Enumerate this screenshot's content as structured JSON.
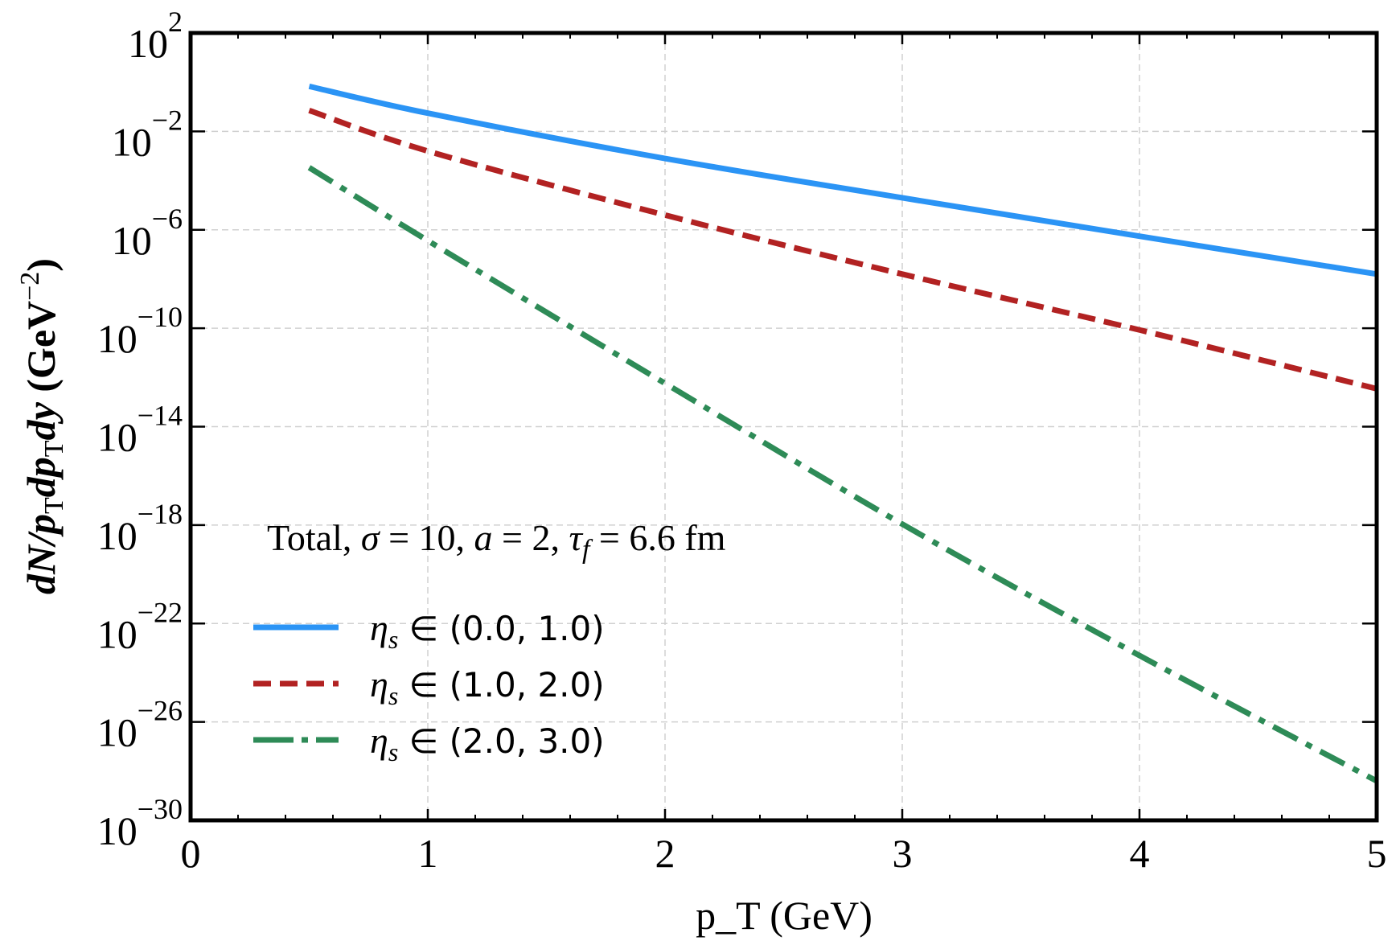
{
  "chart_data": {
    "type": "line",
    "title": "",
    "xlabel": "p_T (GeV)",
    "xlabel_parts": {
      "var": "p",
      "sub": "T",
      "unit": " (GeV)"
    },
    "ylabel": "dN/p_T dp_T dy (GeV^-2)",
    "ylabel_parts": {
      "a": "dN/p",
      "sub1": "T",
      "b": "dp",
      "sub2": "T",
      "c": "dy",
      "unit": " (GeV",
      "exp": "−2",
      "close": ")"
    },
    "xlim": [
      0,
      5
    ],
    "ylim_log10": [
      -30,
      2
    ],
    "yscale": "log",
    "grid": true,
    "legend_placement": "lower-left",
    "annotation": {
      "a": "Total, ",
      "sigma": "σ",
      "b": " = 10, ",
      "avar": "a",
      "c": " = 2, ",
      "tau": "τ",
      "tausub": "f",
      "d": " = 6.6 fm"
    },
    "xticks": [
      "0",
      "1",
      "2",
      "3",
      "4",
      "5"
    ],
    "yticks": [
      {
        "base": "10",
        "exp": "2"
      },
      {
        "base": "10",
        "exp": "−2"
      },
      {
        "base": "10",
        "exp": "−6"
      },
      {
        "base": "10",
        "exp": "−10"
      },
      {
        "base": "10",
        "exp": "−14"
      },
      {
        "base": "10",
        "exp": "−18"
      },
      {
        "base": "10",
        "exp": "−22"
      },
      {
        "base": "10",
        "exp": "−26"
      },
      {
        "base": "10",
        "exp": "−30"
      }
    ],
    "x": [
      0.5,
      1,
      2,
      3,
      4,
      5
    ],
    "series": [
      {
        "name": "η_s ∈ (0.0, 1.0)",
        "label_var": "η",
        "label_sub": "s",
        "label_rest": " ∈ (0.0, 1.0)",
        "color": "#2b94f5",
        "style": "solid",
        "log10_values": [
          -0.17,
          -1.26,
          -3.1,
          -4.7,
          -6.26,
          -7.8
        ]
      },
      {
        "name": "η_s ∈ (1.0, 2.0)",
        "label_var": "η",
        "label_sub": "s",
        "label_rest": " ∈ (1.0, 2.0)",
        "color": "#b22222",
        "style": "dashed",
        "log10_values": [
          -1.15,
          -2.8,
          -5.4,
          -7.8,
          -10.07,
          -12.46
        ]
      },
      {
        "name": "η_s ∈ (2.0, 3.0)",
        "label_var": "η",
        "label_sub": "s",
        "label_rest": " ∈ (2.0, 3.0)",
        "color": "#2e8b57",
        "style": "dashdot",
        "log10_values": [
          -3.47,
          -6.44,
          -12.24,
          -17.96,
          -23.3,
          -28.4
        ]
      }
    ]
  }
}
